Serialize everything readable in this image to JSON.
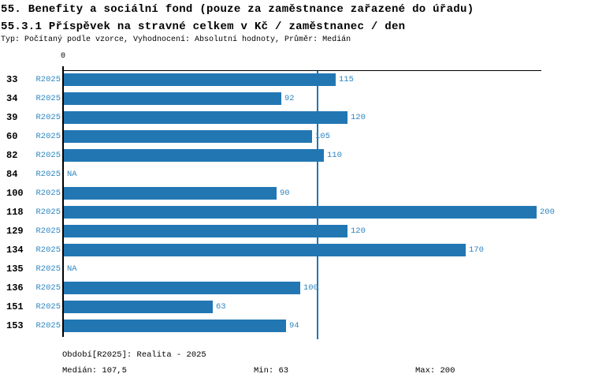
{
  "header": {
    "title": "55. Benefity a sociální fond (pouze za zaměstnance zařazené do úřadu)",
    "subtitle": "55.3.1 Příspěvek na stravné celkem v Kč / zaměstnanec / den",
    "meta": "Typ: Počítaný podle vzorce, Vyhodnocení: Absolutní hodnoty, Průměr: Medián"
  },
  "chart_data": {
    "type": "bar",
    "orientation": "horizontal",
    "title": "55.3.1 Příspěvek na stravné celkem v Kč / zaměstnanec / den",
    "categories": [
      "33",
      "34",
      "39",
      "60",
      "82",
      "84",
      "100",
      "118",
      "129",
      "134",
      "135",
      "136",
      "151",
      "153"
    ],
    "series_label": "R2025",
    "values": [
      115,
      92,
      120,
      105,
      110,
      null,
      90,
      200,
      120,
      170,
      null,
      100,
      63,
      94
    ],
    "na_label": "NA",
    "x_axis_zero_label": "0",
    "xlim": [
      0,
      202
    ],
    "median_reference_line": 107.5,
    "grid": false,
    "legend_position": "none",
    "colors": {
      "bar": "#2277b3",
      "median_line": "#2277b3",
      "value_text": "#2e86c1",
      "axis": "#000000"
    }
  },
  "footer": {
    "period": "Období[R2025]: Realita - 2025",
    "median": "Medián: 107,5",
    "min": "Min: 63",
    "max": "Max: 200"
  }
}
